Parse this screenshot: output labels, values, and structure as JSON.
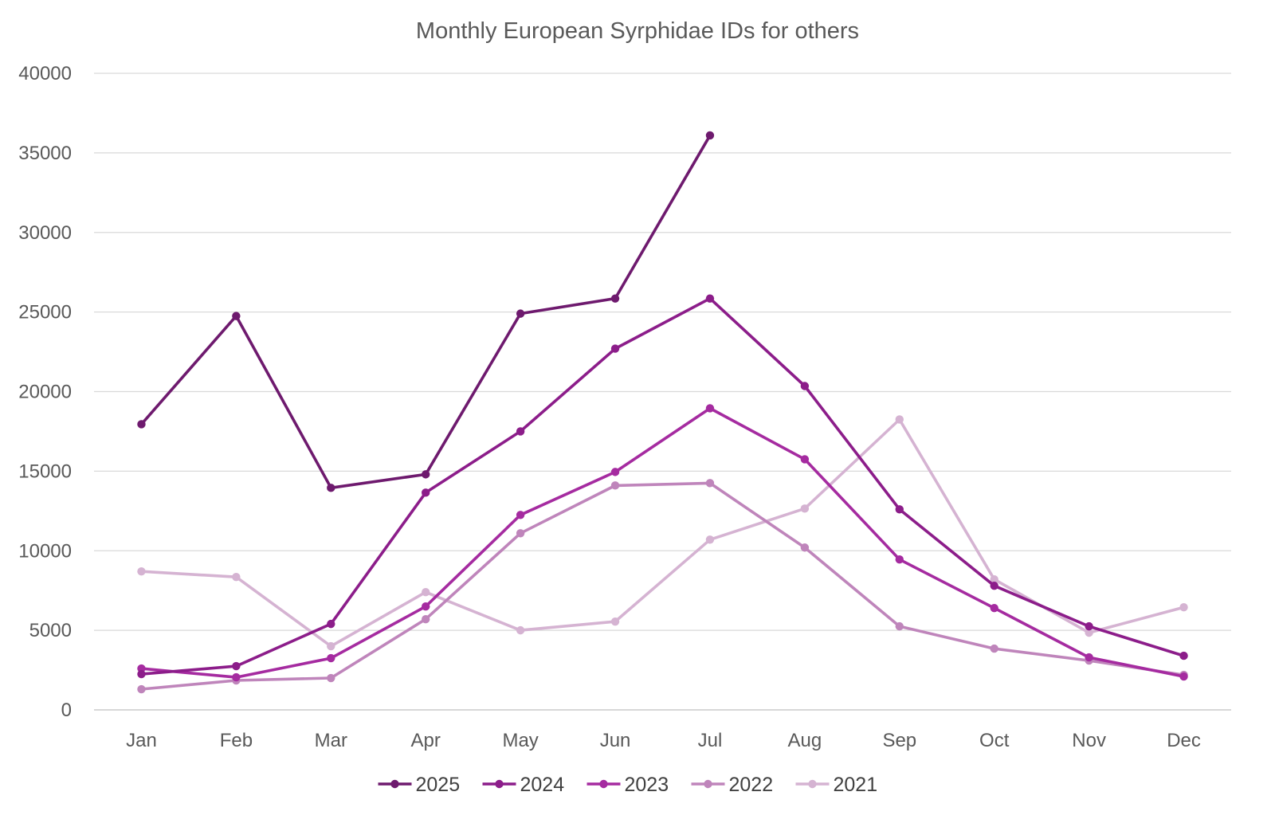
{
  "chart_data": {
    "type": "line",
    "title": "Monthly European Syrphidae IDs for others",
    "xlabel": "",
    "ylabel": "",
    "categories": [
      "Jan",
      "Feb",
      "Mar",
      "Apr",
      "May",
      "Jun",
      "Jul",
      "Aug",
      "Sep",
      "Oct",
      "Nov",
      "Dec"
    ],
    "ylim": [
      0,
      40000
    ],
    "yticks": [
      0,
      5000,
      10000,
      15000,
      20000,
      25000,
      30000,
      35000,
      40000
    ],
    "grid": true,
    "legend_position": "bottom",
    "series": [
      {
        "name": "2021",
        "color": "#d5b3d2",
        "values": [
          8700,
          8350,
          4000,
          7400,
          5000,
          5550,
          10700,
          12650,
          18250,
          8200,
          4850,
          6450
        ]
      },
      {
        "name": "2022",
        "color": "#bf85bb",
        "values": [
          1300,
          1850,
          2000,
          5700,
          11100,
          14100,
          14250,
          10200,
          5250,
          3850,
          3100,
          2200
        ]
      },
      {
        "name": "2023",
        "color": "#a52ba0",
        "values": [
          2600,
          2050,
          3250,
          6500,
          12250,
          14950,
          18950,
          15750,
          9450,
          6400,
          3300,
          2100
        ]
      },
      {
        "name": "2024",
        "color": "#8c1d8a",
        "values": [
          2250,
          2750,
          5400,
          13650,
          17500,
          22700,
          25850,
          20350,
          12600,
          7800,
          5250,
          3400
        ]
      },
      {
        "name": "2025",
        "color": "#6e1a6e",
        "values": [
          17950,
          24750,
          13950,
          14800,
          24900,
          25850,
          36100,
          null,
          null,
          null,
          null,
          null
        ]
      }
    ],
    "legend_order": [
      "2025",
      "2024",
      "2023",
      "2022",
      "2021"
    ]
  }
}
